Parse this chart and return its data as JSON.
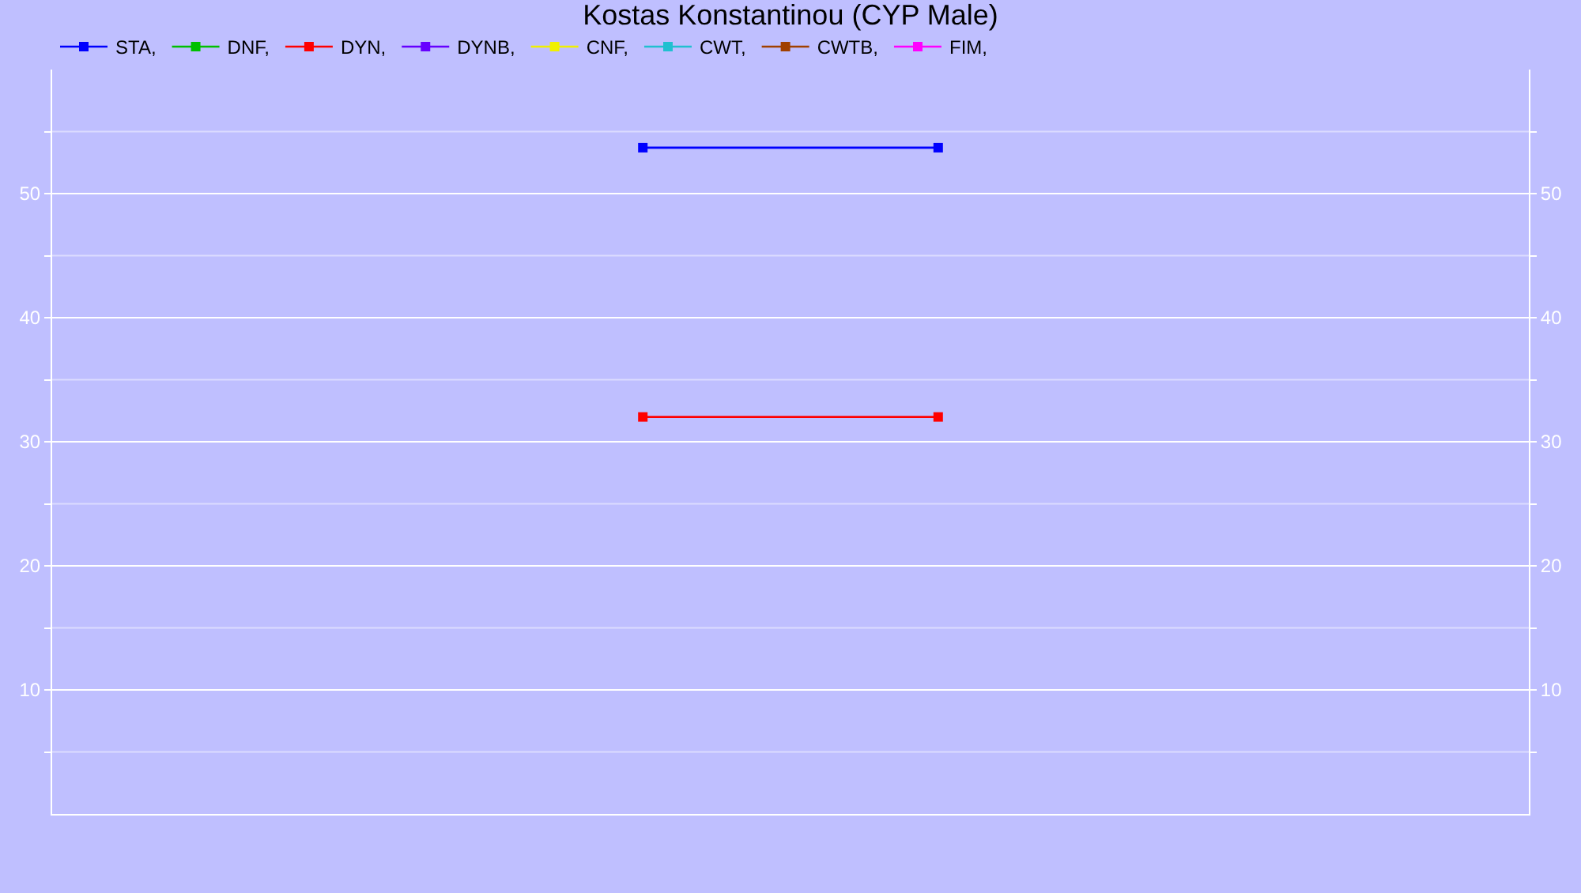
{
  "chart_data": {
    "type": "line",
    "title": "Kostas Konstantinou (CYP Male)",
    "categories": [
      null,
      null,
      null,
      null
    ],
    "series": [
      {
        "name": "STA,",
        "color": "#0000ff",
        "values": [
          null,
          53.7,
          53.7,
          null
        ]
      },
      {
        "name": "DNF,",
        "color": "#00c000",
        "values": [
          null,
          null,
          null,
          null
        ]
      },
      {
        "name": "DYN,",
        "color": "#ff0000",
        "values": [
          null,
          32.0,
          32.0,
          null
        ]
      },
      {
        "name": "DYNB,",
        "color": "#6600ff",
        "values": [
          null,
          null,
          null,
          null
        ]
      },
      {
        "name": "CNF,",
        "color": "#f0f000",
        "values": [
          null,
          null,
          null,
          null
        ]
      },
      {
        "name": "CWT,",
        "color": "#20c0d0",
        "values": [
          null,
          null,
          null,
          null
        ]
      },
      {
        "name": "CWTB,",
        "color": "#a04000",
        "values": [
          null,
          null,
          null,
          null
        ]
      },
      {
        "name": "FIM,",
        "color": "#ff00ff",
        "values": [
          null,
          null,
          null,
          null
        ]
      }
    ],
    "ylim": [
      0,
      60
    ],
    "yticks": [
      {
        "value": 5,
        "label": null
      },
      10,
      {
        "value": 15,
        "label": null
      },
      20,
      {
        "value": 25,
        "label": null
      },
      30,
      {
        "value": 35,
        "label": null
      },
      40,
      {
        "value": 45,
        "label": null
      },
      50,
      {
        "value": 55,
        "label": null
      }
    ],
    "y2lim": [
      0,
      60
    ],
    "y2ticks": [
      {
        "value": 5,
        "label": null
      },
      10,
      {
        "value": 15,
        "label": null
      },
      20,
      {
        "value": 25,
        "label": null
      },
      30,
      {
        "value": 35,
        "label": null
      },
      40,
      {
        "value": 45,
        "label": null
      },
      50,
      {
        "value": 55,
        "label": null
      }
    ],
    "grid": "y",
    "legend": "top left",
    "marker": "square",
    "line_style": "solid"
  }
}
